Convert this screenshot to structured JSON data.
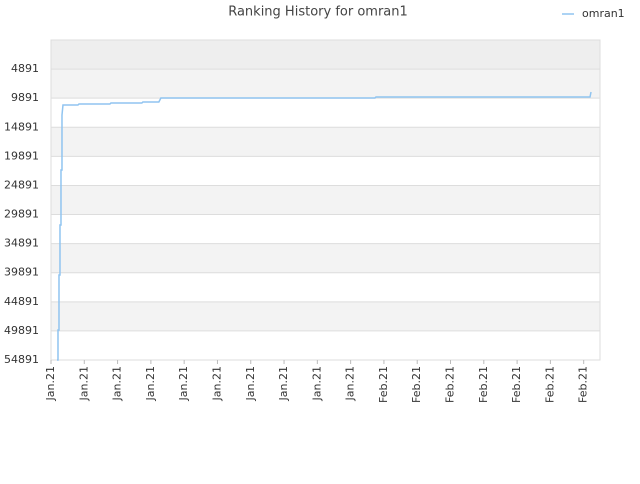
{
  "chart_data": {
    "type": "line",
    "title": "Ranking History for omran1",
    "x": [
      0.18,
      0.21,
      0.21,
      0.24,
      0.24,
      0.27,
      0.27,
      0.3,
      0.3,
      0.33,
      0.33,
      0.36,
      0.81,
      0.84,
      1.77,
      1.8,
      2.73,
      2.76,
      3.24,
      3.3,
      9.73,
      9.76,
      16.19,
      16.22
    ],
    "series": [
      {
        "name": "omran1",
        "color": "#90c4f0",
        "values": [
          54891,
          54891,
          49734,
          49734,
          40282,
          40282,
          31687,
          31687,
          22234,
          22234,
          12781,
          11063,
          11063,
          10891,
          10891,
          10719,
          10719,
          10547,
          10547,
          9859,
          9859,
          9688,
          9688,
          8828
        ]
      }
    ],
    "xlim": [
      0,
      16.49
    ],
    "xticks": [
      {
        "value": 0,
        "label": "Jan.21"
      },
      {
        "value": 1,
        "label": "Jan.21"
      },
      {
        "value": 2,
        "label": "Jan.21"
      },
      {
        "value": 3,
        "label": "Jan.21"
      },
      {
        "value": 4,
        "label": "Jan.21"
      },
      {
        "value": 5,
        "label": "Jan.21"
      },
      {
        "value": 6,
        "label": "Jan.21"
      },
      {
        "value": 7,
        "label": "Jan.21"
      },
      {
        "value": 8,
        "label": "Jan.21"
      },
      {
        "value": 9,
        "label": "Jan.21"
      },
      {
        "value": 10,
        "label": "Feb.21"
      },
      {
        "value": 11,
        "label": "Feb.21"
      },
      {
        "value": 12,
        "label": "Feb.21"
      },
      {
        "value": 13,
        "label": "Feb.21"
      },
      {
        "value": 14,
        "label": "Feb.21"
      },
      {
        "value": 15,
        "label": "Feb.21"
      },
      {
        "value": 16,
        "label": "Feb.21"
      }
    ],
    "ylim": [
      54891,
      -109
    ],
    "yticks": [
      4891,
      9891,
      14891,
      19891,
      24891,
      29891,
      34891,
      39891,
      44891,
      49891,
      54891
    ],
    "grid": true,
    "legend": "top-right"
  }
}
